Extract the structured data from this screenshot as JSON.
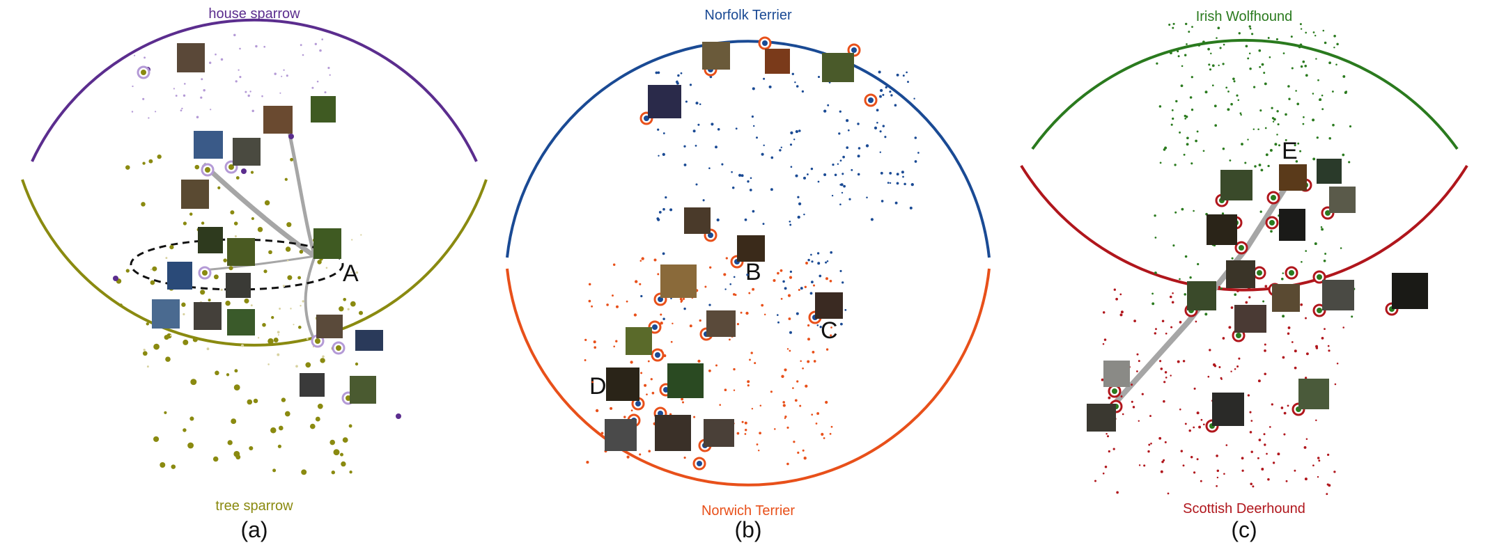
{
  "panels": [
    {
      "id": "a",
      "caption": "(a)",
      "top_label": "house sparrow",
      "bottom_label": "tree sparrow",
      "top_color": "#5b2d8e",
      "bottom_color": "#8a8a10",
      "annotations": [
        "A"
      ]
    },
    {
      "id": "b",
      "caption": "(b)",
      "top_label": "Norfolk Terrier",
      "bottom_label": "Norwich Terrier",
      "top_color": "#1a4a94",
      "bottom_color": "#e8501a",
      "annotations": [
        "B",
        "C",
        "D"
      ]
    },
    {
      "id": "c",
      "caption": "(c)",
      "top_label": "Irish Wolfhound",
      "bottom_label": "Scottish Deerhound",
      "top_color": "#2a7a1e",
      "bottom_color": "#b0161c",
      "annotations": [
        "E"
      ]
    }
  ],
  "colors": {
    "trail": "#a6a6a6",
    "thumbnail_dark": "#4a3a2a",
    "thumbnail_green": "#3f5a22",
    "dashed_ellipse": "#111111"
  }
}
